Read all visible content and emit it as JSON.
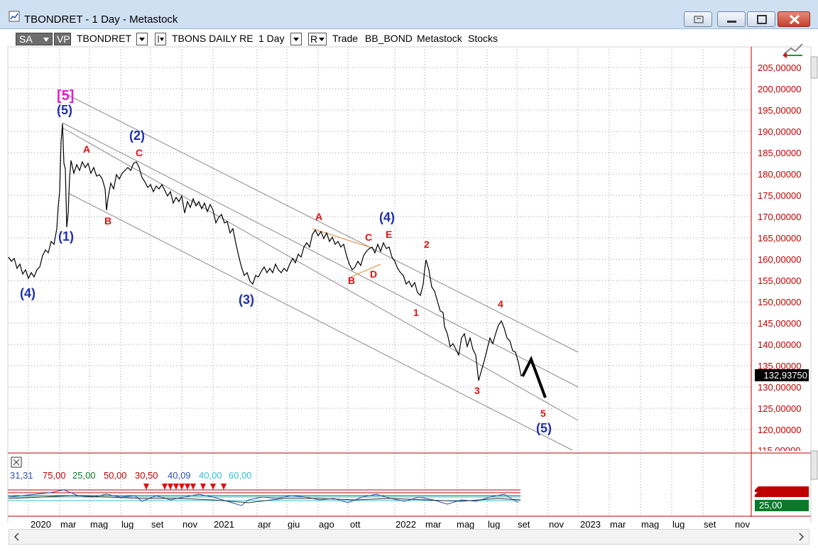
{
  "window": {
    "title": "TBONDRET - 1 Day - Metastock"
  },
  "toolbar": {
    "sa": "SA",
    "vp": "VP",
    "symbol": "TBONDRET",
    "security_name": "TBONS DAILY RE",
    "period": "1 Day",
    "r": "R",
    "trade": "Trade",
    "group": "BB_BOND",
    "source": "Metastock",
    "type": "Stocks"
  },
  "price_axis": {
    "labels": [
      "205,00000",
      "200,00000",
      "195,00000",
      "190,00000",
      "185,00000",
      "180,00000",
      "175,00000",
      "170,00000",
      "165,00000",
      "160,00000",
      "155,00000",
      "150,00000",
      "145,00000",
      "140,00000",
      "135,00000",
      "130,00000",
      "125,00000",
      "120,00000",
      "115,00000"
    ],
    "current": "132,93750"
  },
  "indicator": {
    "labels": [
      {
        "text": "31,31",
        "color": "#2b4fb5"
      },
      {
        "text": "75,00",
        "color": "#c00000"
      },
      {
        "text": "25,00",
        "color": "#0a7a2a"
      },
      {
        "text": "50,00",
        "color": "#c00000"
      },
      {
        "text": "30,50",
        "color": "#c00000"
      },
      {
        "text": "40,09",
        "color": "#2b4fb5"
      },
      {
        "text": "40,00",
        "color": "#33c2d6"
      },
      {
        "text": "60,00",
        "color": "#33c2d6"
      }
    ],
    "side_value": "25,00"
  },
  "time_axis": [
    "2020",
    "mar",
    "mag",
    "lug",
    "set",
    "nov",
    "2021",
    "apr",
    "giu",
    "ago",
    "ott",
    "2022",
    "mar",
    "mag",
    "lug",
    "set",
    "nov",
    "2023",
    "mar",
    "mag",
    "lug",
    "set",
    "nov"
  ],
  "waves": [
    {
      "text": "[5]",
      "color": "#e020d0",
      "size": 20
    },
    {
      "text": "(5)",
      "color": "#1f2fb0",
      "size": 18
    },
    {
      "text": "(1)",
      "color": "#1f2fb0",
      "size": 18
    },
    {
      "text": "(4)",
      "color": "#1f2fb0",
      "size": 18
    },
    {
      "text": "(2)",
      "color": "#1f2fb0",
      "size": 18
    },
    {
      "text": "A",
      "color": "#e01010",
      "size": 14
    },
    {
      "text": "B",
      "color": "#e01010",
      "size": 14
    },
    {
      "text": "C",
      "color": "#e01010",
      "size": 14
    },
    {
      "text": "(3)",
      "color": "#1f2fb0",
      "size": 18
    },
    {
      "text": "A",
      "color": "#e01010",
      "size": 14
    },
    {
      "text": "B",
      "color": "#e01010",
      "size": 14
    },
    {
      "text": "C",
      "color": "#e01010",
      "size": 14
    },
    {
      "text": "D",
      "color": "#e01010",
      "size": 14
    },
    {
      "text": "E",
      "color": "#e01010",
      "size": 14
    },
    {
      "text": "(4)",
      "color": "#1f2fb0",
      "size": 18
    },
    {
      "text": "2",
      "color": "#e01010",
      "size": 14
    },
    {
      "text": "1",
      "color": "#e01010",
      "size": 14
    },
    {
      "text": "3",
      "color": "#e01010",
      "size": 14
    },
    {
      "text": "4",
      "color": "#e01010",
      "size": 14
    },
    {
      "text": "5",
      "color": "#e01010",
      "size": 14
    },
    {
      "text": "(5)",
      "color": "#1f2fb0",
      "size": 18
    }
  ],
  "colors": {
    "price_line": "#000000",
    "axis_text": "#c00000",
    "channel": "#8a8a8a",
    "wave_major": "#1f2fb0",
    "wave_minor": "#e01010",
    "signal_arrow": "#e01010"
  }
}
